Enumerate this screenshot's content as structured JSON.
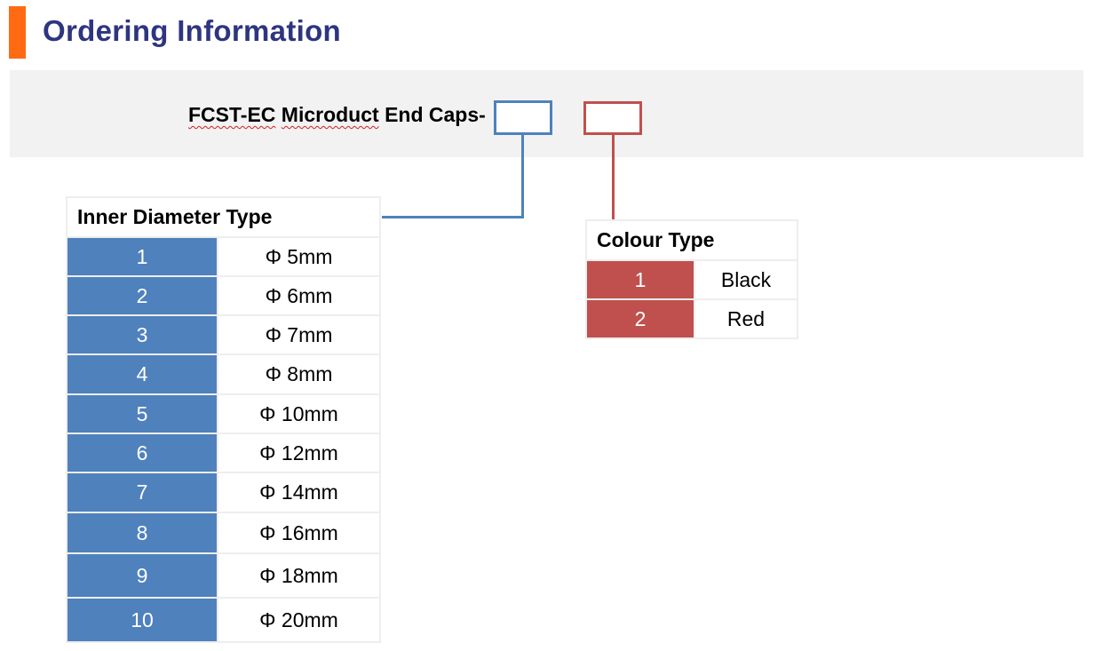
{
  "heading": "Ordering Information",
  "product_code": {
    "name_part1": "FCST-EC",
    "name_part2": "Microduct",
    "suffix": "End Caps-"
  },
  "colors": {
    "accent": "#ff6a13",
    "title": "#2e3580",
    "diameter": "#4f81bd",
    "colour": "#c0504d"
  },
  "inner_diameter": {
    "title": "Inner Diameter Type",
    "rows": [
      {
        "code": "1",
        "value": "Φ 5mm"
      },
      {
        "code": "2",
        "value": "Φ 6mm"
      },
      {
        "code": "3",
        "value": "Φ 7mm"
      },
      {
        "code": "4",
        "value": "Φ 8mm"
      },
      {
        "code": "5",
        "value": "Φ 10mm"
      },
      {
        "code": "6",
        "value": "Φ 12mm"
      },
      {
        "code": "7",
        "value": "Φ 14mm"
      },
      {
        "code": "8",
        "value": "Φ 16mm"
      },
      {
        "code": "9",
        "value": "Φ 18mm"
      },
      {
        "code": "10",
        "value": "Φ 20mm"
      }
    ]
  },
  "colour_type": {
    "title": "Colour Type",
    "rows": [
      {
        "code": "1",
        "value": "Black"
      },
      {
        "code": "2",
        "value": "Red"
      }
    ]
  }
}
